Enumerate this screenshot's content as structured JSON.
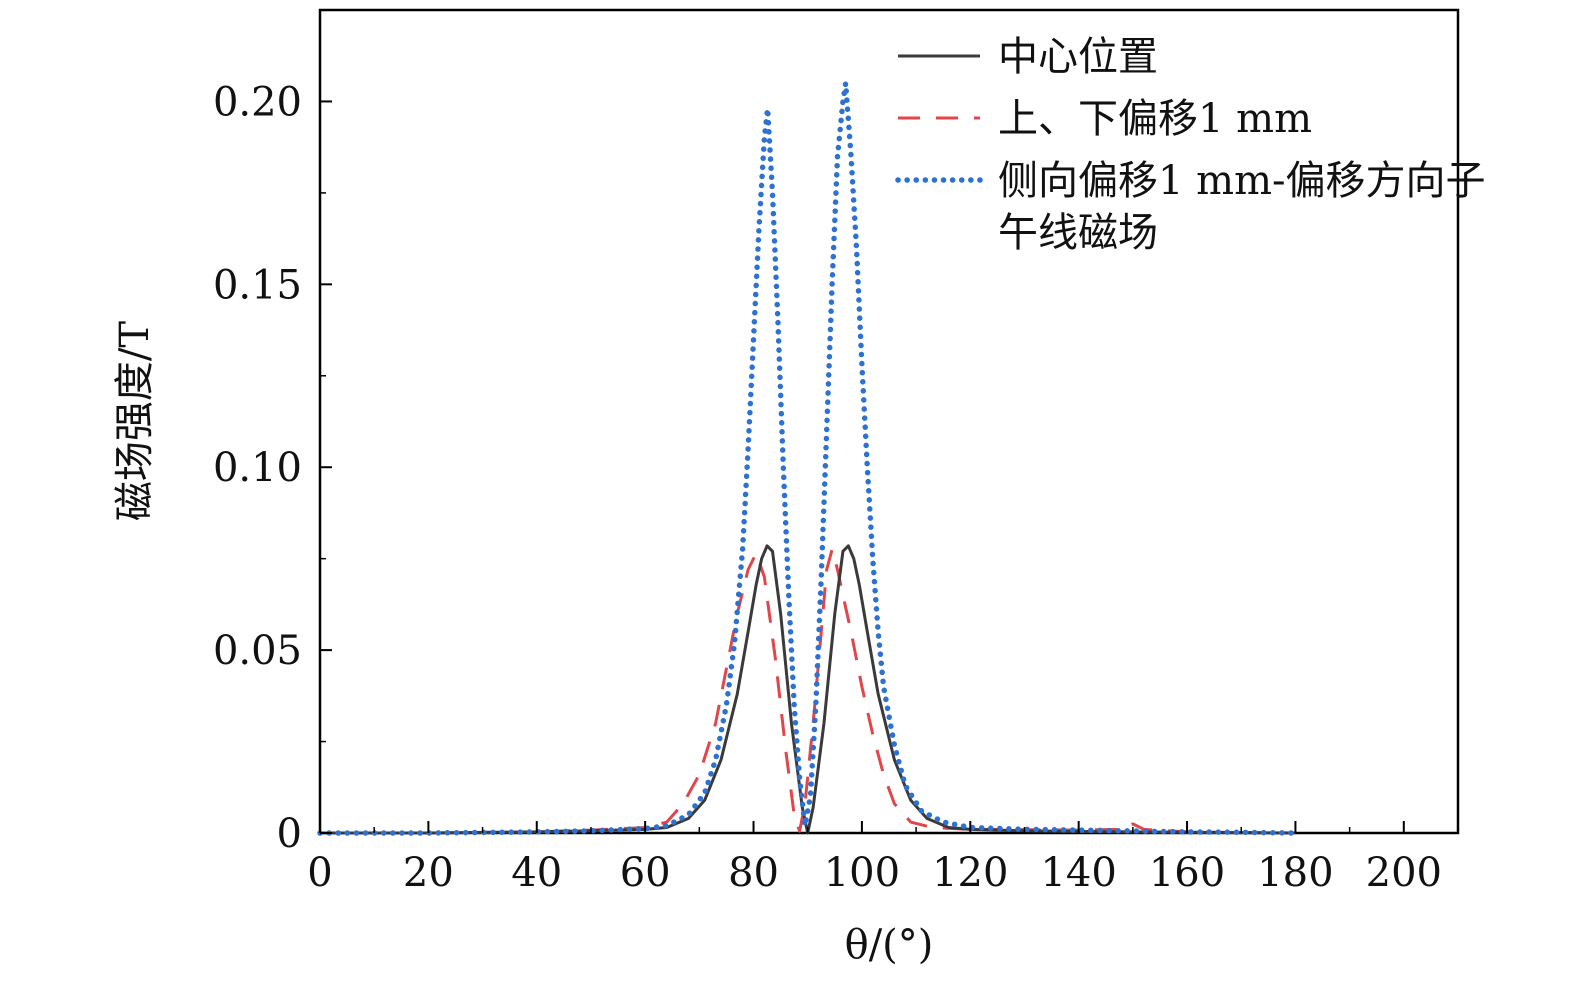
{
  "chart_data": {
    "type": "line",
    "xlabel": "θ/(°)",
    "ylabel": "磁场强度/T",
    "xlim": [
      0,
      210
    ],
    "ylim": [
      0,
      0.225
    ],
    "x_ticks": [
      0,
      20,
      40,
      60,
      80,
      100,
      120,
      140,
      160,
      180,
      200
    ],
    "x_tick_labels": [
      "0",
      "20",
      "40",
      "60",
      "80",
      "100",
      "120",
      "140",
      "160",
      "180",
      "200"
    ],
    "y_ticks": [
      0,
      0.05,
      0.1,
      0.15,
      0.2
    ],
    "y_tick_labels": [
      "0",
      "0.05",
      "0.10",
      "0.15",
      "0.20"
    ],
    "grid": false,
    "legend_position": "top-right",
    "series": [
      {
        "name": "中心位置",
        "style": "solid",
        "color": "#3a3a3a",
        "points": [
          [
            0,
            0
          ],
          [
            20,
            0
          ],
          [
            40,
            0.0003
          ],
          [
            50,
            0.0006
          ],
          [
            60,
            0.001
          ],
          [
            64,
            0.0015
          ],
          [
            68,
            0.004
          ],
          [
            71,
            0.009
          ],
          [
            74,
            0.02
          ],
          [
            77,
            0.038
          ],
          [
            79,
            0.055
          ],
          [
            80.5,
            0.068
          ],
          [
            81.5,
            0.075
          ],
          [
            82.5,
            0.0785
          ],
          [
            83.5,
            0.077
          ],
          [
            85,
            0.06
          ],
          [
            87,
            0.03
          ],
          [
            89,
            0.007
          ],
          [
            90,
            0
          ],
          [
            91,
            0.007
          ],
          [
            93,
            0.03
          ],
          [
            95,
            0.06
          ],
          [
            96.5,
            0.077
          ],
          [
            97.5,
            0.0785
          ],
          [
            98.5,
            0.075
          ],
          [
            99.5,
            0.068
          ],
          [
            101,
            0.055
          ],
          [
            103,
            0.038
          ],
          [
            106,
            0.02
          ],
          [
            109,
            0.009
          ],
          [
            112,
            0.004
          ],
          [
            116,
            0.0015
          ],
          [
            120,
            0.001
          ],
          [
            130,
            0.0006
          ],
          [
            140,
            0.0004
          ],
          [
            160,
            0.0002
          ],
          [
            180,
            0
          ]
        ]
      },
      {
        "name": "上、下偏移1 mm",
        "style": "dashed",
        "color": "#e0464a",
        "points": [
          [
            0,
            0
          ],
          [
            20,
            0
          ],
          [
            40,
            0.0003
          ],
          [
            50,
            0.0008
          ],
          [
            60,
            0.0015
          ],
          [
            64,
            0.003
          ],
          [
            67,
            0.008
          ],
          [
            70,
            0.016
          ],
          [
            73,
            0.03
          ],
          [
            75,
            0.045
          ],
          [
            77,
            0.06
          ],
          [
            79,
            0.072
          ],
          [
            80.5,
            0.0765
          ],
          [
            82,
            0.07
          ],
          [
            84,
            0.048
          ],
          [
            86,
            0.022
          ],
          [
            87.5,
            0.005
          ],
          [
            88.5,
            0.0005
          ],
          [
            89.5,
            0.008
          ],
          [
            91,
            0.03
          ],
          [
            92.5,
            0.055
          ],
          [
            93.5,
            0.072
          ],
          [
            94.5,
            0.0775
          ],
          [
            95.5,
            0.072
          ],
          [
            96.5,
            0.065
          ],
          [
            98,
            0.055
          ],
          [
            100,
            0.04
          ],
          [
            102,
            0.027
          ],
          [
            104,
            0.016
          ],
          [
            106,
            0.008
          ],
          [
            109,
            0.003
          ],
          [
            113,
            0.0015
          ],
          [
            120,
            0.001
          ],
          [
            140,
            0.0008
          ],
          [
            148,
            0.001
          ],
          [
            150,
            0.0025
          ],
          [
            152,
            0.001
          ],
          [
            160,
            0.0003
          ],
          [
            180,
            0
          ]
        ]
      },
      {
        "name": "侧向偏移1 mm-偏移方向子午线磁场",
        "style": "dotted",
        "color": "#2d72d2",
        "points": [
          [
            0,
            0
          ],
          [
            20,
            0
          ],
          [
            40,
            0.0003
          ],
          [
            50,
            0.0006
          ],
          [
            60,
            0.0012
          ],
          [
            64,
            0.002
          ],
          [
            68,
            0.005
          ],
          [
            71,
            0.011
          ],
          [
            73,
            0.02
          ],
          [
            75,
            0.035
          ],
          [
            76.5,
            0.052
          ],
          [
            78,
            0.078
          ],
          [
            79,
            0.105
          ],
          [
            80,
            0.135
          ],
          [
            81,
            0.165
          ],
          [
            82,
            0.19
          ],
          [
            82.6,
            0.198
          ],
          [
            83.5,
            0.175
          ],
          [
            84.5,
            0.14
          ],
          [
            85.5,
            0.1
          ],
          [
            86.5,
            0.065
          ],
          [
            87.5,
            0.035
          ],
          [
            88.5,
            0.015
          ],
          [
            89.5,
            0.002
          ],
          [
            90.5,
            0.01
          ],
          [
            91.5,
            0.035
          ],
          [
            92.5,
            0.07
          ],
          [
            93.5,
            0.11
          ],
          [
            94.5,
            0.15
          ],
          [
            95.5,
            0.185
          ],
          [
            96.5,
            0.2
          ],
          [
            97,
            0.205
          ],
          [
            98,
            0.185
          ],
          [
            99,
            0.16
          ],
          [
            100,
            0.128
          ],
          [
            101,
            0.1
          ],
          [
            102,
            0.075
          ],
          [
            103,
            0.055
          ],
          [
            104,
            0.04
          ],
          [
            106,
            0.024
          ],
          [
            108,
            0.013
          ],
          [
            111,
            0.006
          ],
          [
            115,
            0.003
          ],
          [
            120,
            0.0015
          ],
          [
            130,
            0.001
          ],
          [
            140,
            0.0008
          ],
          [
            160,
            0.0003
          ],
          [
            170,
            0.0002
          ],
          [
            180,
            0
          ]
        ]
      }
    ]
  }
}
